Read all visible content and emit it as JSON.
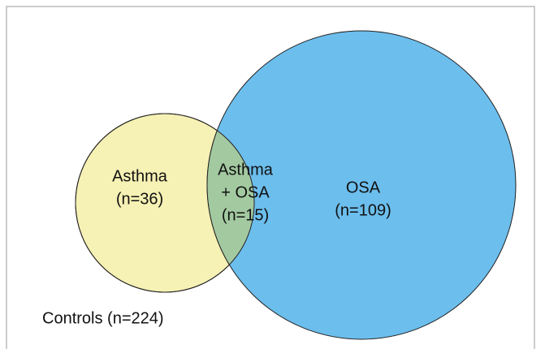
{
  "regions": [
    {
      "lines": [
        "Asthma",
        "(n=36)"
      ]
    },
    {
      "lines": [
        "Asthma",
        "+ OSA",
        "(n=15)"
      ]
    },
    {
      "lines": [
        "OSA",
        "(n=109)"
      ]
    }
  ],
  "controls": "Controls (n=224)"
}
